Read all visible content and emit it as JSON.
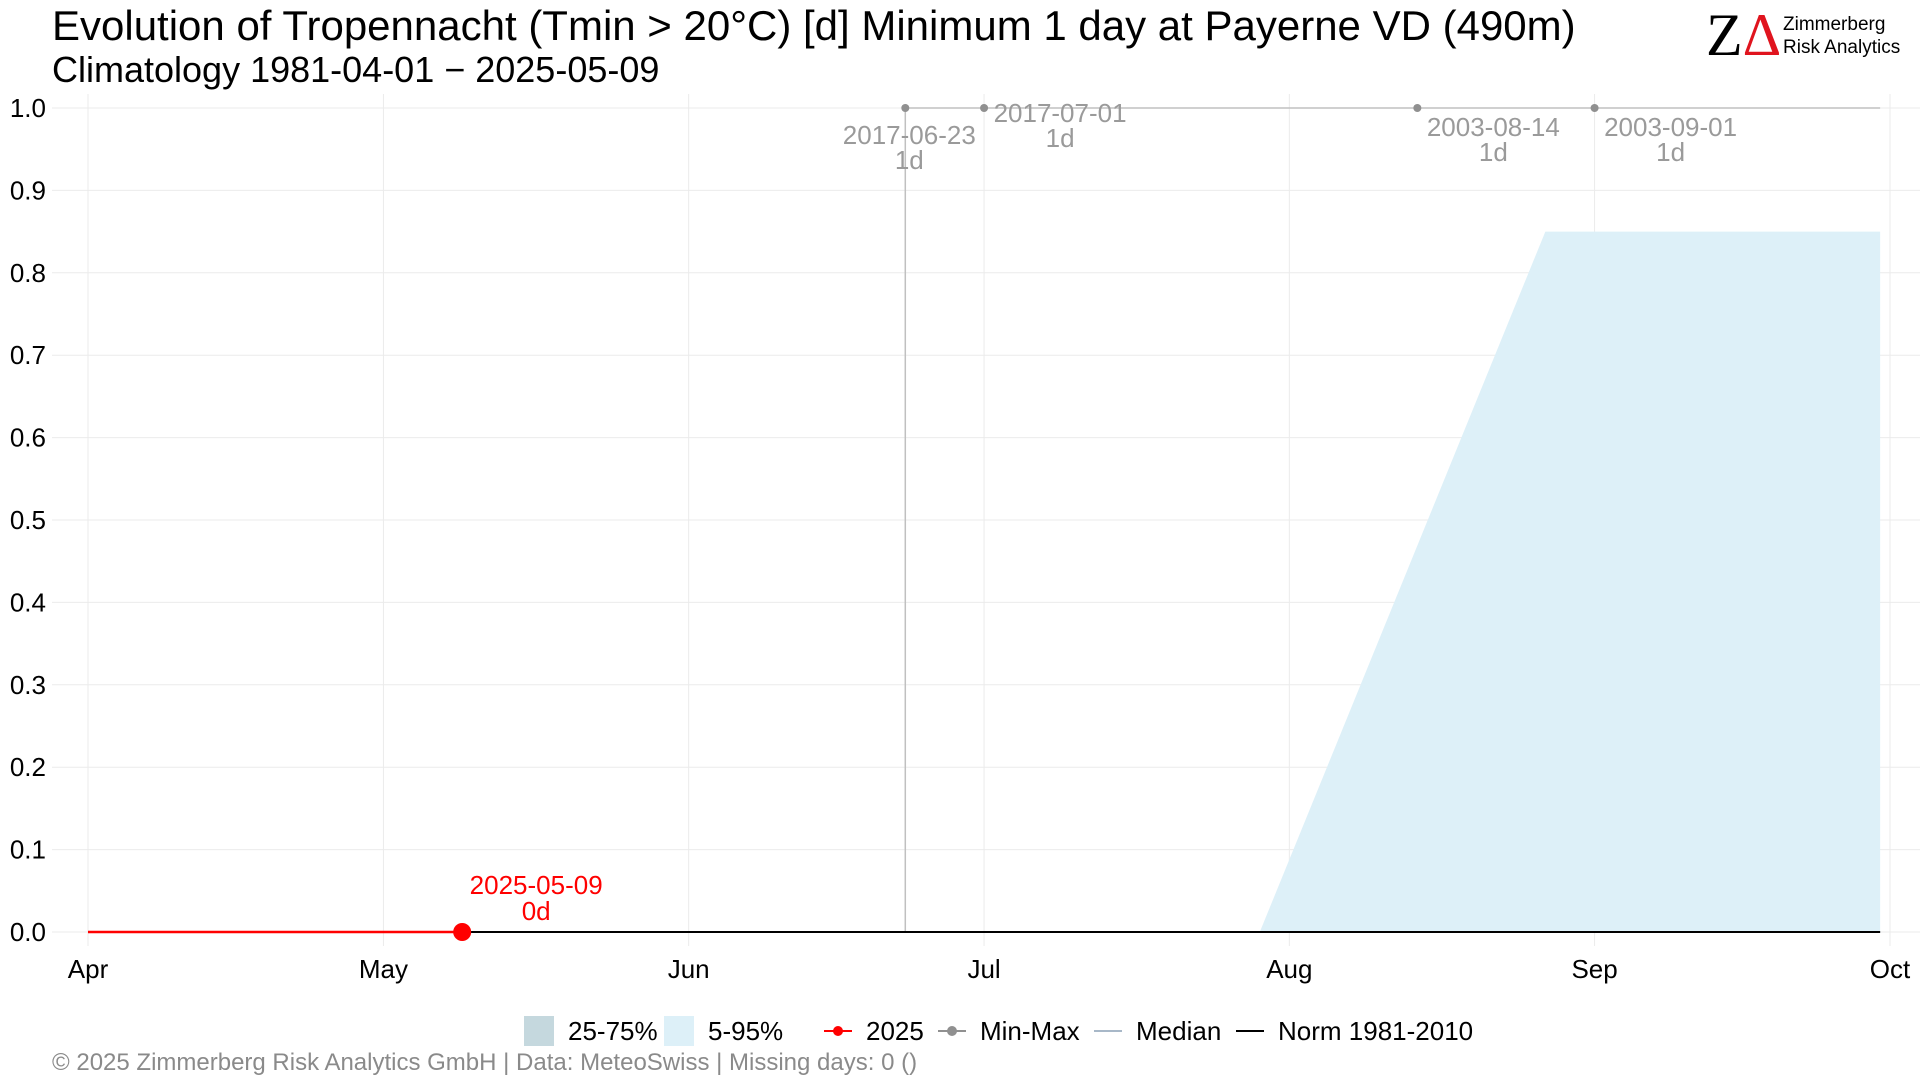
{
  "chart_data": {
    "type": "line",
    "title": "Evolution of Tropennacht (Tmin > 20°C) [d] Minimum 1 day at Payerne  VD (490m)",
    "subtitle": "Climatology 1981-04-01 − 2025-05-09",
    "x_ticks": [
      {
        "label": "Apr",
        "date": "2025-04-01"
      },
      {
        "label": "May",
        "date": "2025-05-01"
      },
      {
        "label": "Jun",
        "date": "2025-06-01"
      },
      {
        "label": "Jul",
        "date": "2025-07-01"
      },
      {
        "label": "Aug",
        "date": "2025-08-01"
      },
      {
        "label": "Sep",
        "date": "2025-09-01"
      },
      {
        "label": "Oct",
        "date": "2025-10-01"
      }
    ],
    "xlim": [
      "2025-04-01",
      "2025-10-01"
    ],
    "ylim": [
      0,
      1
    ],
    "y_ticks": [
      "0.0",
      "0.1",
      "0.2",
      "0.3",
      "0.4",
      "0.5",
      "0.6",
      "0.7",
      "0.8",
      "0.9",
      "1.0"
    ],
    "grid": true,
    "series": [
      {
        "name": "2025",
        "color": "#ff0000",
        "points": [
          {
            "x": "2025-04-01",
            "y": 0
          },
          {
            "x": "2025-05-09",
            "y": 0
          }
        ]
      },
      {
        "name": "Min-Max",
        "color": "#c0c0c0",
        "points": [
          {
            "x": "2025-04-01",
            "y": 0
          },
          {
            "x": "2025-06-23",
            "y": 0
          },
          {
            "x": "2025-06-23",
            "y": 1
          },
          {
            "x": "2025-09-30",
            "y": 1
          }
        ]
      },
      {
        "name": "Median",
        "color": "#a8b8c8",
        "points": [
          {
            "x": "2025-04-01",
            "y": 0
          },
          {
            "x": "2025-09-30",
            "y": 0
          }
        ]
      },
      {
        "name": "Norm 1981-2010",
        "color": "#000000",
        "points": [
          {
            "x": "2025-05-09",
            "y": 0
          },
          {
            "x": "2025-09-30",
            "y": 0
          }
        ]
      }
    ],
    "bands": [
      {
        "name": "5-95%",
        "color": "#ddf0f8",
        "points": [
          {
            "x": "2025-07-29",
            "y": 0
          },
          {
            "x": "2025-08-27",
            "y": 0.85
          },
          {
            "x": "2025-09-30",
            "y": 0.85
          },
          {
            "x": "2025-09-30",
            "y": 0
          }
        ]
      },
      {
        "name": "25-75%",
        "color": "#c5d8de",
        "points": []
      }
    ],
    "annotations": [
      {
        "date_label": "2017-06-23",
        "value_label": "1d",
        "x": "2025-06-23",
        "y": 1
      },
      {
        "date_label": "2017-07-01",
        "value_label": "1d",
        "x": "2025-07-01",
        "y": 1
      },
      {
        "date_label": "2003-08-14",
        "value_label": "1d",
        "x": "2025-08-14",
        "y": 1
      },
      {
        "date_label": "2003-09-01",
        "value_label": "1d",
        "x": "2025-09-01",
        "y": 1
      }
    ],
    "current": {
      "date_label": "2025-05-09",
      "value_label": "0d",
      "x": "2025-05-09",
      "y": 0,
      "color": "#ff0000"
    },
    "legend": {
      "placement": "bottom",
      "items": [
        {
          "label": "25-75%",
          "kind": "fill",
          "color": "#c5d8de"
        },
        {
          "label": "5-95%",
          "kind": "fill",
          "color": "#ddf0f8"
        },
        {
          "label": "2025",
          "kind": "line-dot",
          "color": "#ff0000"
        },
        {
          "label": "Min-Max",
          "kind": "line-dot",
          "color": "#909090"
        },
        {
          "label": "Median",
          "kind": "line",
          "color": "#a8b8c8"
        },
        {
          "label": "Norm 1981-2010",
          "kind": "line",
          "color": "#000000"
        }
      ]
    }
  },
  "logo": {
    "letters": "ZΔ",
    "line1": "Zimmerberg",
    "line2": "Risk Analytics",
    "color_z": "#000000",
    "color_delta": "#e0141e"
  },
  "footer": "©  2025 Zimmerberg Risk Analytics GmbH | Data: MeteoSwiss | Missing days: 0 ()"
}
